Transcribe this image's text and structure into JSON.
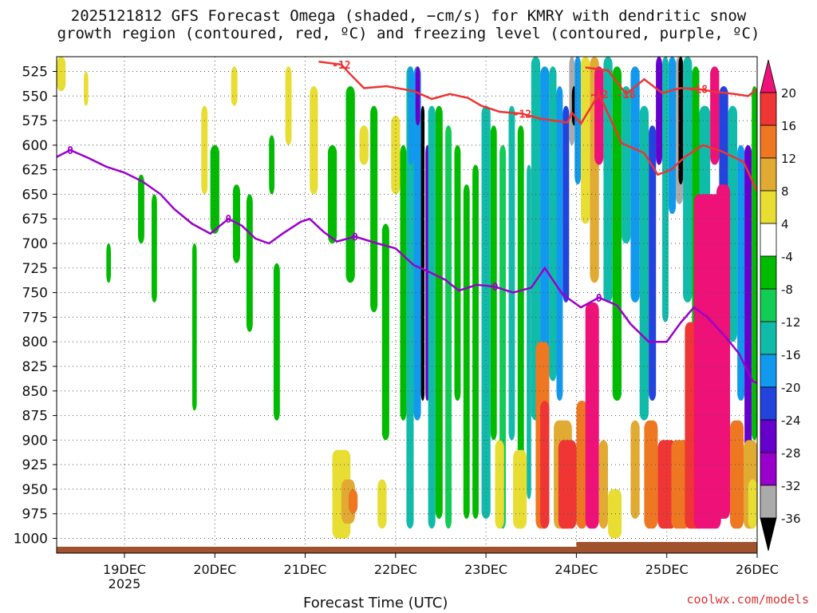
{
  "title_line1": "2025121812 GFS Forecast Omega (shaded, −cm/s) for KMRY with dendritic snow",
  "title_line2": "growth region (contoured, red, ºC) and freezing level (contoured, purple, ºC)",
  "credit": "coolwx.com/models",
  "chart_data": {
    "type": "heatmap",
    "xlabel": "Forecast Time (UTC)",
    "x_ticks": [
      {
        "label": "19DEC",
        "sub": "2025",
        "day": 1
      },
      {
        "label": "20DEC",
        "sub": "",
        "day": 2
      },
      {
        "label": "21DEC",
        "sub": "",
        "day": 3
      },
      {
        "label": "22DEC",
        "sub": "",
        "day": 4
      },
      {
        "label": "23DEC",
        "sub": "",
        "day": 5
      },
      {
        "label": "24DEC",
        "sub": "",
        "day": 6
      },
      {
        "label": "25DEC",
        "sub": "",
        "day": 7
      },
      {
        "label": "26DEC",
        "sub": "",
        "day": 8
      }
    ],
    "x_range_days": [
      0.25,
      8.0
    ],
    "y_ticks": [
      525,
      550,
      575,
      600,
      625,
      650,
      675,
      700,
      725,
      750,
      775,
      800,
      825,
      850,
      875,
      900,
      925,
      950,
      975,
      1000
    ],
    "y_range_hpa": [
      510,
      1015
    ],
    "y_unit": "hPa",
    "colorbar": {
      "levels": [
        20,
        16,
        12,
        8,
        4,
        -4,
        -8,
        -12,
        -16,
        -20,
        -24,
        -28,
        -32,
        -36
      ],
      "colors_top_to_bottom": [
        "#ee1177",
        "#f03535",
        "#ee7722",
        "#e0aa33",
        "#e8dd33",
        "#ffffff",
        "#00bb00",
        "#11cc55",
        "#11bbaa",
        "#1199ee",
        "#2244dd",
        "#6600cc",
        "#9900cc",
        "#aaaaaa",
        "#000000"
      ]
    },
    "series": [
      {
        "name": "Freezing level (0°C)",
        "color": "#9a00cc",
        "contour_label": "0",
        "points": [
          [
            0.25,
            612
          ],
          [
            0.4,
            605
          ],
          [
            0.6,
            613
          ],
          [
            0.8,
            622
          ],
          [
            1.0,
            628
          ],
          [
            1.2,
            637
          ],
          [
            1.4,
            650
          ],
          [
            1.55,
            665
          ],
          [
            1.75,
            680
          ],
          [
            1.95,
            690
          ],
          [
            2.15,
            675
          ],
          [
            2.3,
            682
          ],
          [
            2.45,
            695
          ],
          [
            2.6,
            700
          ],
          [
            2.75,
            690
          ],
          [
            2.95,
            678
          ],
          [
            3.05,
            675
          ],
          [
            3.2,
            688
          ],
          [
            3.35,
            698
          ],
          [
            3.55,
            693
          ],
          [
            3.8,
            700
          ],
          [
            4.0,
            705
          ],
          [
            4.2,
            722
          ],
          [
            4.35,
            728
          ],
          [
            4.55,
            737
          ],
          [
            4.7,
            748
          ],
          [
            4.9,
            742
          ],
          [
            5.1,
            744
          ],
          [
            5.3,
            750
          ],
          [
            5.5,
            745
          ],
          [
            5.65,
            725
          ],
          [
            5.85,
            752
          ],
          [
            6.05,
            765
          ],
          [
            6.25,
            755
          ],
          [
            6.45,
            763
          ],
          [
            6.6,
            782
          ],
          [
            6.8,
            800
          ],
          [
            7.0,
            800
          ],
          [
            7.15,
            781
          ],
          [
            7.3,
            765
          ],
          [
            7.45,
            775
          ],
          [
            7.65,
            795
          ],
          [
            7.8,
            812
          ],
          [
            7.95,
            840
          ],
          [
            8.0,
            842
          ]
        ]
      },
      {
        "name": "-12°C contour",
        "color": "#ee3333",
        "contour_label": "-12",
        "points": [
          [
            3.15,
            515
          ],
          [
            3.4,
            518
          ],
          [
            3.5,
            528
          ],
          [
            3.65,
            542
          ],
          [
            3.9,
            540
          ],
          [
            4.2,
            545
          ],
          [
            4.4,
            553
          ],
          [
            4.6,
            548
          ],
          [
            4.8,
            552
          ],
          [
            4.95,
            560
          ],
          [
            5.15,
            566
          ],
          [
            5.4,
            568
          ],
          [
            5.6,
            573
          ],
          [
            5.9,
            577
          ],
          [
            5.95,
            567
          ],
          [
            6.05,
            578
          ],
          [
            6.25,
            548
          ],
          [
            6.5,
            598
          ],
          [
            6.75,
            608
          ],
          [
            6.9,
            630
          ],
          [
            7.05,
            625
          ],
          [
            7.2,
            612
          ],
          [
            7.4,
            600
          ],
          [
            7.6,
            606
          ],
          [
            7.85,
            617
          ],
          [
            8.0,
            647
          ]
        ]
      },
      {
        "name": "-18°C contour",
        "color": "#ee3333",
        "contour_label": "-18",
        "points": [
          [
            6.1,
            521
          ],
          [
            6.35,
            524
          ],
          [
            6.55,
            548
          ],
          [
            6.75,
            533
          ],
          [
            6.95,
            547
          ],
          [
            7.15,
            542
          ],
          [
            7.35,
            543
          ],
          [
            7.55,
            546
          ],
          [
            7.75,
            548
          ],
          [
            7.9,
            550
          ],
          [
            8.0,
            543
          ]
        ]
      }
    ],
    "grid": true
  }
}
